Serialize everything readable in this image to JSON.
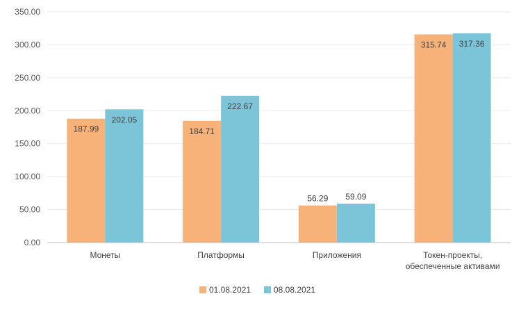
{
  "chart_data": {
    "type": "bar",
    "categories": [
      [
        "Монеты"
      ],
      [
        "Платформы"
      ],
      [
        "Приложения"
      ],
      [
        "Токен-проекты,",
        "обеспеченные активами"
      ]
    ],
    "series": [
      {
        "name": "01.08.2021",
        "color": "#f7b27a",
        "values": [
          187.99,
          184.71,
          56.29,
          315.74
        ],
        "labels": [
          "187.99",
          "184.71",
          "56.29",
          "315.74"
        ]
      },
      {
        "name": "08.08.2021",
        "color": "#7cc4d8",
        "values": [
          202.05,
          222.67,
          59.09,
          317.36
        ],
        "labels": [
          "202.05",
          "222.67",
          "59.09",
          "317.36"
        ]
      }
    ],
    "ylim": [
      0,
      350
    ],
    "yticks": [
      "0.00",
      "50.00",
      "100.00",
      "150.00",
      "200.00",
      "250.00",
      "300.00",
      "350.00"
    ],
    "grid": true,
    "legend": "bottom",
    "label_inside_threshold": 100
  }
}
